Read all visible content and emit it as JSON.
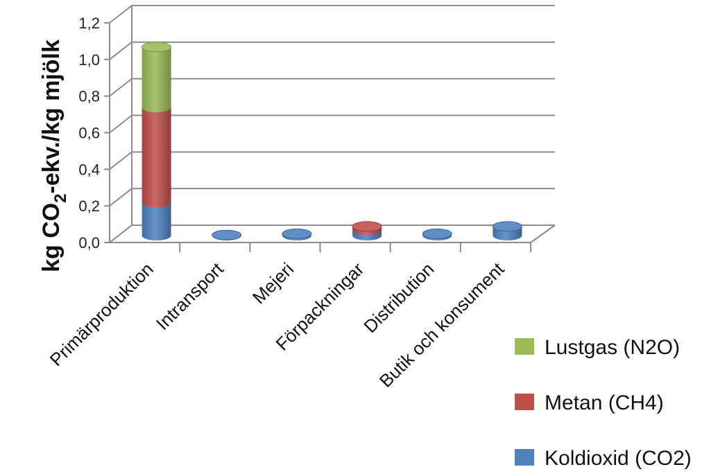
{
  "chart_data": {
    "type": "bar",
    "stacked": true,
    "style": "3d-cylinder",
    "categories": [
      "Primärproduktion",
      "Intransport",
      "Mejeri",
      "Förpackningar",
      "Distribution",
      "Butik och konsument"
    ],
    "series": [
      {
        "name": "Koldioxid (CO2)",
        "color": "#4f81bd",
        "values": [
          0.18,
          0.003,
          0.01,
          0.03,
          0.01,
          0.05
        ]
      },
      {
        "name": "Metan (CH4)",
        "color": "#c0504d",
        "values": [
          0.52,
          0.0,
          0.0,
          0.02,
          0.0,
          0.0
        ]
      },
      {
        "name": "Lustgas (N2O)",
        "color": "#9bbb59",
        "values": [
          0.33,
          0.0,
          0.0,
          0.0,
          0.0,
          0.0
        ]
      }
    ],
    "ylabel": "kg CO2-ekv./kg mjölk",
    "ylabel_parts": {
      "pre": "kg CO",
      "sub": "2",
      "post": "-ekv./kg mjölk"
    },
    "ylim": [
      0,
      1.2
    ],
    "yticks": [
      "0,0",
      "0,2",
      "0,4",
      "0,6",
      "0,8",
      "1,0",
      "1,2"
    ],
    "grid": true,
    "legend_position": "bottom-right",
    "legend_order": [
      "Lustgas (N2O)",
      "Metan (CH4)",
      "Koldioxid (CO2)"
    ]
  }
}
